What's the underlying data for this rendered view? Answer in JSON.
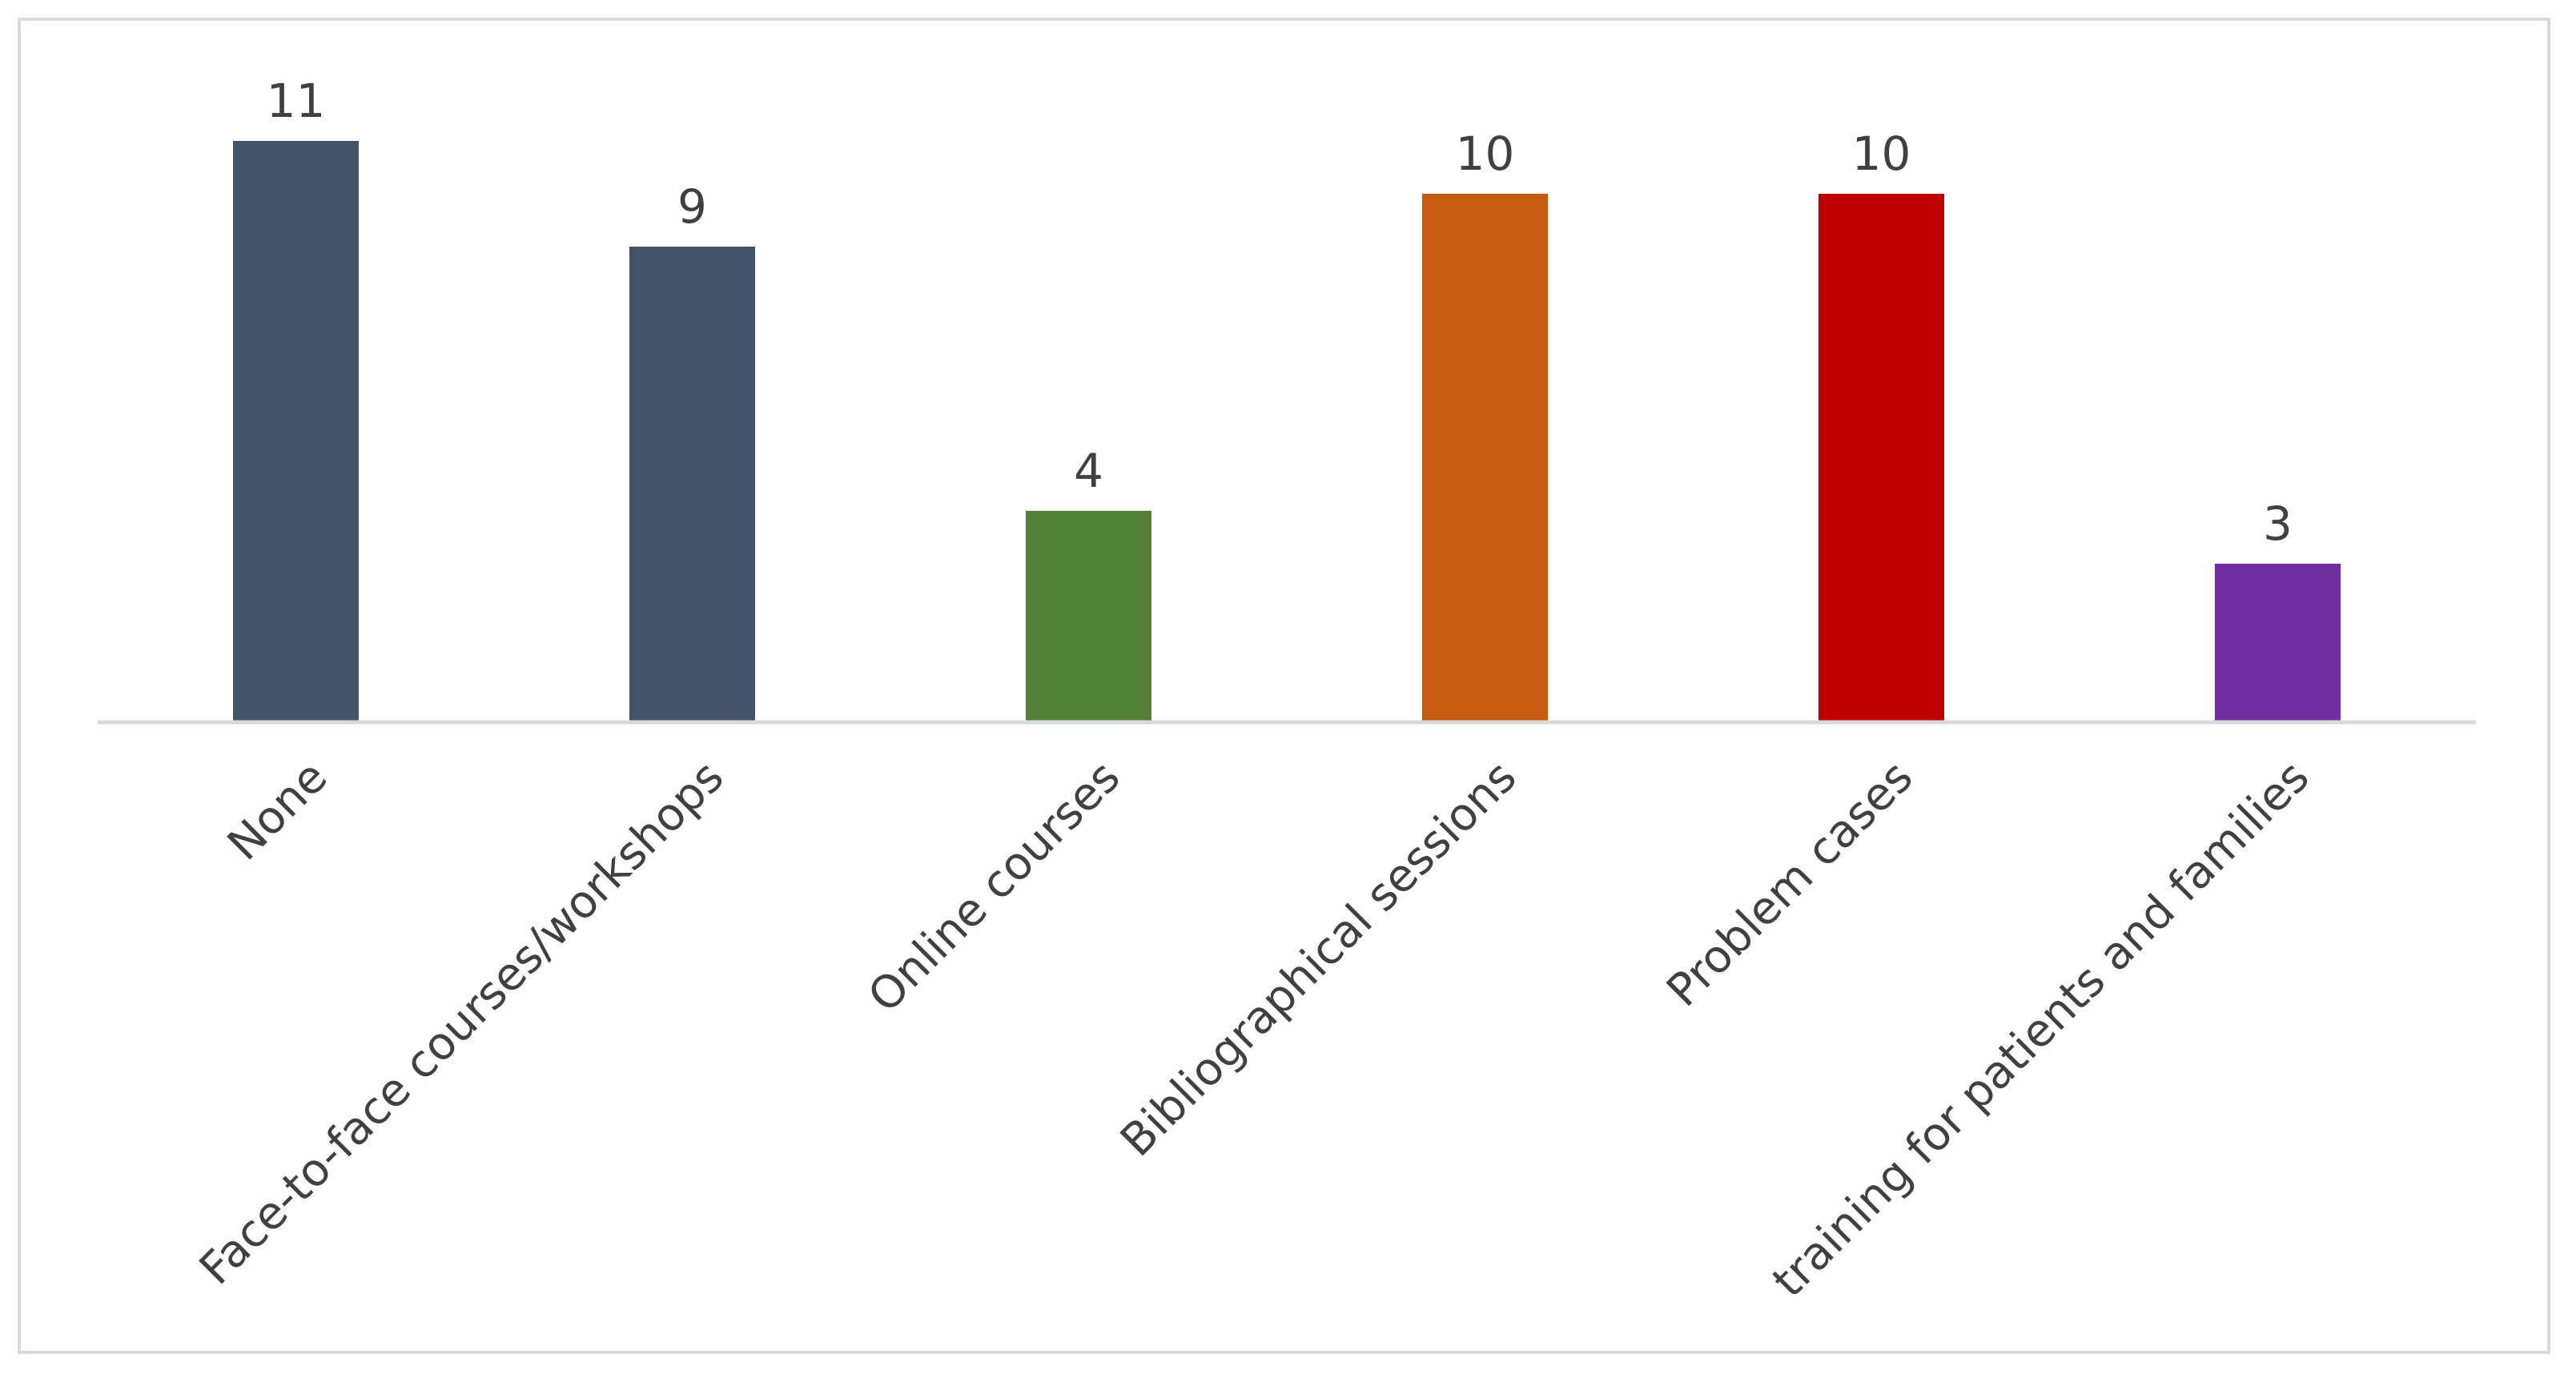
{
  "chart_data": {
    "type": "bar",
    "categories": [
      "None",
      "Face-to-face courses/workshops",
      "Online courses",
      "Bibliographical sessions",
      "Problem cases",
      "training for patients and families"
    ],
    "values": [
      11,
      9,
      4,
      10,
      10,
      3
    ],
    "colors": [
      "#435368",
      "#435368",
      "#538135",
      "#c55a11",
      "#c00000",
      "#7030a0"
    ],
    "title": "",
    "xlabel": "",
    "ylabel": "",
    "ylim": [
      0,
      11
    ],
    "grid": false,
    "legend": "none",
    "data_labels": true,
    "axis_color": "#d9d9d9",
    "label_color": "#404040"
  }
}
